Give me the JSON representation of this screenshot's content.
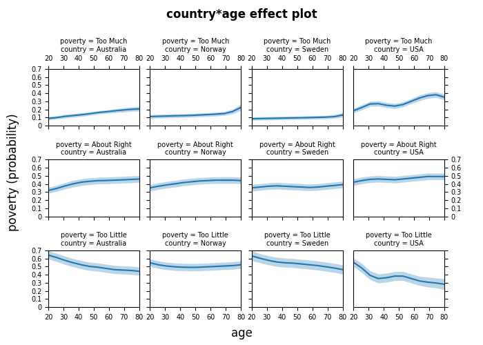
{
  "title": "country*age effect plot",
  "xlabel": "age",
  "ylabel": "poverty (probability)",
  "chart_data": [
    {
      "type": "line",
      "title": "poverty = Too Much",
      "subtitle": "country = Australia",
      "x": [
        20,
        25.454545454545453,
        30.90909090909091,
        36.36363636363636,
        41.81818181818182,
        47.27272727272727,
        52.72727272727273,
        58.18181818181818,
        63.63636363636363,
        69.0909090909091,
        74.54545454545455,
        80
      ],
      "values": [
        0.09,
        0.1,
        0.115,
        0.125,
        0.135,
        0.148,
        0.162,
        0.172,
        0.183,
        0.193,
        0.202,
        0.207
      ],
      "lower": [
        0.072,
        0.082,
        0.095,
        0.105,
        0.115,
        0.128,
        0.142,
        0.152,
        0.16,
        0.168,
        0.176,
        0.18
      ],
      "upper": [
        0.112,
        0.122,
        0.138,
        0.148,
        0.158,
        0.17,
        0.184,
        0.194,
        0.208,
        0.22,
        0.23,
        0.237
      ],
      "xlim": [
        20,
        80
      ],
      "xticks": [
        20,
        30,
        40,
        50,
        60,
        70,
        80
      ],
      "ylim": [
        0,
        0.7
      ],
      "yticks": [
        0,
        0.1,
        0.2,
        0.3,
        0.4,
        0.5,
        0.6,
        0.7
      ]
    },
    {
      "type": "line",
      "title": "poverty = Too Much",
      "subtitle": "country = Norway",
      "x": [
        20,
        25.454545454545453,
        30.90909090909091,
        36.36363636363636,
        41.81818181818182,
        47.27272727272727,
        52.72727272727273,
        58.18181818181818,
        63.63636363636363,
        69.0909090909091,
        74.54545454545455,
        80
      ],
      "values": [
        0.112,
        0.116,
        0.119,
        0.122,
        0.124,
        0.127,
        0.132,
        0.137,
        0.143,
        0.15,
        0.175,
        0.225
      ],
      "lower": [
        0.09,
        0.094,
        0.097,
        0.1,
        0.102,
        0.105,
        0.11,
        0.115,
        0.12,
        0.127,
        0.148,
        0.188
      ],
      "upper": [
        0.136,
        0.14,
        0.143,
        0.146,
        0.148,
        0.151,
        0.156,
        0.161,
        0.168,
        0.175,
        0.204,
        0.264
      ],
      "xlim": [
        20,
        80
      ],
      "xticks": [
        20,
        30,
        40,
        50,
        60,
        70,
        80
      ],
      "ylim": [
        0,
        0.7
      ],
      "yticks": [
        0,
        0.1,
        0.2,
        0.3,
        0.4,
        0.5,
        0.6,
        0.7
      ],
      "tick_labels": "x"
    },
    {
      "type": "line",
      "title": "poverty = Too Much",
      "subtitle": "country = Sweden",
      "x": [
        20,
        25.454545454545453,
        30.90909090909091,
        36.36363636363636,
        41.81818181818182,
        47.27272727272727,
        52.72727272727273,
        58.18181818181818,
        63.63636363636363,
        69.0909090909091,
        74.54545454545455,
        80
      ],
      "values": [
        0.086,
        0.088,
        0.09,
        0.092,
        0.094,
        0.096,
        0.098,
        0.1,
        0.103,
        0.106,
        0.112,
        0.132
      ],
      "lower": [
        0.066,
        0.068,
        0.07,
        0.072,
        0.074,
        0.076,
        0.078,
        0.08,
        0.083,
        0.086,
        0.092,
        0.105
      ],
      "upper": [
        0.108,
        0.11,
        0.112,
        0.114,
        0.116,
        0.118,
        0.12,
        0.122,
        0.125,
        0.128,
        0.135,
        0.162
      ],
      "xlim": [
        20,
        80
      ],
      "xticks": [
        20,
        30,
        40,
        50,
        60,
        70,
        80
      ],
      "ylim": [
        0,
        0.7
      ],
      "yticks": [
        0,
        0.1,
        0.2,
        0.3,
        0.4,
        0.5,
        0.6,
        0.7
      ],
      "tick_labels": "x"
    },
    {
      "type": "line",
      "title": "poverty = Too Much",
      "subtitle": "country = USA",
      "x": [
        20,
        25.454545454545453,
        30.90909090909091,
        36.36363636363636,
        41.81818181818182,
        47.27272727272727,
        52.72727272727273,
        58.18181818181818,
        63.63636363636363,
        69.0909090909091,
        74.54545454545455,
        80
      ],
      "values": [
        0.185,
        0.225,
        0.268,
        0.272,
        0.252,
        0.242,
        0.262,
        0.302,
        0.342,
        0.372,
        0.382,
        0.352
      ],
      "lower": [
        0.158,
        0.195,
        0.238,
        0.242,
        0.222,
        0.212,
        0.232,
        0.272,
        0.308,
        0.338,
        0.348,
        0.318
      ],
      "upper": [
        0.215,
        0.258,
        0.3,
        0.305,
        0.285,
        0.275,
        0.295,
        0.335,
        0.378,
        0.408,
        0.418,
        0.388
      ],
      "xlim": [
        20,
        80
      ],
      "xticks": [
        20,
        30,
        40,
        50,
        60,
        70,
        80
      ],
      "ylim": [
        0,
        0.7
      ],
      "yticks": [
        0,
        0.1,
        0.2,
        0.3,
        0.4,
        0.5,
        0.6,
        0.7
      ],
      "tick_labels": "x"
    },
    {
      "type": "line",
      "title": "poverty = About Right",
      "subtitle": "country = Australia",
      "x": [
        20,
        25.454545454545453,
        30.90909090909091,
        36.36363636363636,
        41.81818181818182,
        47.27272727272727,
        52.72727272727273,
        58.18181818181818,
        63.63636363636363,
        69.0909090909091,
        74.54545454545455,
        80
      ],
      "values": [
        0.32,
        0.345,
        0.375,
        0.402,
        0.422,
        0.433,
        0.441,
        0.443,
        0.447,
        0.451,
        0.456,
        0.461
      ],
      "lower": [
        0.285,
        0.308,
        0.338,
        0.362,
        0.382,
        0.392,
        0.4,
        0.402,
        0.406,
        0.41,
        0.415,
        0.42
      ],
      "upper": [
        0.358,
        0.385,
        0.415,
        0.444,
        0.464,
        0.475,
        0.483,
        0.485,
        0.49,
        0.494,
        0.499,
        0.504
      ],
      "xlim": [
        20,
        80
      ],
      "xticks": [
        20,
        30,
        40,
        50,
        60,
        70,
        80
      ],
      "ylim": [
        0,
        0.7
      ],
      "yticks": [
        0,
        0.1,
        0.2,
        0.3,
        0.4,
        0.5,
        0.6,
        0.7
      ],
      "tick_labels": "y"
    },
    {
      "type": "line",
      "title": "poverty = About Right",
      "subtitle": "country = Norway",
      "x": [
        20,
        25.454545454545453,
        30.90909090909091,
        36.36363636363636,
        41.81818181818182,
        47.27272727272727,
        52.72727272727273,
        58.18181818181818,
        63.63636363636363,
        69.0909090909091,
        74.54545454545455,
        80
      ],
      "values": [
        0.352,
        0.372,
        0.388,
        0.402,
        0.417,
        0.427,
        0.437,
        0.442,
        0.447,
        0.447,
        0.447,
        0.442
      ],
      "lower": [
        0.312,
        0.332,
        0.348,
        0.362,
        0.377,
        0.387,
        0.397,
        0.402,
        0.407,
        0.407,
        0.407,
        0.402
      ],
      "upper": [
        0.394,
        0.414,
        0.43,
        0.444,
        0.459,
        0.469,
        0.479,
        0.484,
        0.489,
        0.489,
        0.489,
        0.484
      ],
      "xlim": [
        20,
        80
      ],
      "xticks": [
        20,
        30,
        40,
        50,
        60,
        70,
        80
      ],
      "ylim": [
        0,
        0.7
      ],
      "yticks": [
        0,
        0.1,
        0.2,
        0.3,
        0.4,
        0.5,
        0.6,
        0.7
      ],
      "tick_labels": false
    },
    {
      "type": "line",
      "title": "poverty = About Right",
      "subtitle": "country = Sweden",
      "x": [
        20,
        25.454545454545453,
        30.90909090909091,
        36.36363636363636,
        41.81818181818182,
        47.27272727272727,
        52.72727272727273,
        58.18181818181818,
        63.63636363636363,
        69.0909090909091,
        74.54545454545455,
        80
      ],
      "values": [
        0.352,
        0.362,
        0.372,
        0.377,
        0.372,
        0.367,
        0.362,
        0.357,
        0.362,
        0.372,
        0.382,
        0.392
      ],
      "lower": [
        0.312,
        0.322,
        0.332,
        0.337,
        0.332,
        0.327,
        0.322,
        0.317,
        0.322,
        0.332,
        0.342,
        0.352
      ],
      "upper": [
        0.394,
        0.404,
        0.414,
        0.419,
        0.414,
        0.409,
        0.404,
        0.399,
        0.404,
        0.414,
        0.424,
        0.434
      ],
      "xlim": [
        20,
        80
      ],
      "xticks": [
        20,
        30,
        40,
        50,
        60,
        70,
        80
      ],
      "ylim": [
        0,
        0.7
      ],
      "yticks": [
        0,
        0.1,
        0.2,
        0.3,
        0.4,
        0.5,
        0.6,
        0.7
      ],
      "tick_labels": false
    },
    {
      "type": "line",
      "title": "poverty = About Right",
      "subtitle": "country = USA",
      "x": [
        20,
        25.454545454545453,
        30.90909090909091,
        36.36363636363636,
        41.81818181818182,
        47.27272727272727,
        52.72727272727273,
        58.18181818181818,
        63.63636363636363,
        69.0909090909091,
        74.54545454545455,
        80
      ],
      "values": [
        0.422,
        0.442,
        0.457,
        0.462,
        0.457,
        0.452,
        0.462,
        0.472,
        0.482,
        0.492,
        0.492,
        0.492
      ],
      "lower": [
        0.382,
        0.402,
        0.417,
        0.422,
        0.417,
        0.412,
        0.422,
        0.432,
        0.442,
        0.452,
        0.452,
        0.452
      ],
      "upper": [
        0.464,
        0.484,
        0.499,
        0.504,
        0.499,
        0.494,
        0.504,
        0.514,
        0.524,
        0.534,
        0.534,
        0.534
      ],
      "xlim": [
        20,
        80
      ],
      "xticks": [
        20,
        30,
        40,
        50,
        60,
        70,
        80
      ],
      "ylim": [
        0,
        0.7
      ],
      "yticks": [
        0,
        0.1,
        0.2,
        0.3,
        0.4,
        0.5,
        0.6,
        0.7
      ],
      "tick_labels": "y"
    },
    {
      "type": "line",
      "title": "poverty = Too Little",
      "subtitle": "country = Australia",
      "x": [
        20,
        25.454545454545453,
        30.90909090909091,
        36.36363636363636,
        41.81818181818182,
        47.27272727272727,
        52.72727272727273,
        58.18181818181818,
        63.63636363636363,
        69.0909090909091,
        74.54545454545455,
        80
      ],
      "values": [
        0.642,
        0.612,
        0.577,
        0.547,
        0.522,
        0.502,
        0.492,
        0.477,
        0.462,
        0.457,
        0.452,
        0.442
      ],
      "lower": [
        0.592,
        0.562,
        0.527,
        0.497,
        0.472,
        0.452,
        0.442,
        0.427,
        0.412,
        0.407,
        0.402,
        0.392
      ],
      "upper": [
        0.694,
        0.664,
        0.629,
        0.599,
        0.574,
        0.554,
        0.544,
        0.529,
        0.514,
        0.509,
        0.504,
        0.494
      ],
      "xlim": [
        20,
        80
      ],
      "xticks": [
        20,
        30,
        40,
        50,
        60,
        70,
        80
      ],
      "ylim": [
        0,
        0.7
      ],
      "yticks": [
        0,
        0.1,
        0.2,
        0.3,
        0.4,
        0.5,
        0.6,
        0.7
      ]
    },
    {
      "type": "line",
      "title": "poverty = Too Little",
      "subtitle": "country = Norway",
      "x": [
        20,
        25.454545454545453,
        30.90909090909091,
        36.36363636363636,
        41.81818181818182,
        47.27272727272727,
        52.72727272727273,
        58.18181818181818,
        63.63636363636363,
        69.0909090909091,
        74.54545454545455,
        80
      ],
      "values": [
        0.547,
        0.522,
        0.507,
        0.497,
        0.492,
        0.49,
        0.492,
        0.497,
        0.502,
        0.507,
        0.512,
        0.522
      ],
      "lower": [
        0.502,
        0.477,
        0.462,
        0.452,
        0.447,
        0.445,
        0.447,
        0.452,
        0.457,
        0.462,
        0.467,
        0.477
      ],
      "upper": [
        0.594,
        0.569,
        0.554,
        0.544,
        0.539,
        0.537,
        0.539,
        0.544,
        0.549,
        0.554,
        0.559,
        0.569
      ],
      "xlim": [
        20,
        80
      ],
      "xticks": [
        20,
        30,
        40,
        50,
        60,
        70,
        80
      ],
      "ylim": [
        0,
        0.7
      ],
      "yticks": [
        0,
        0.1,
        0.2,
        0.3,
        0.4,
        0.5,
        0.6,
        0.7
      ],
      "tick_labels": "x"
    },
    {
      "type": "line",
      "title": "poverty = Too Little",
      "subtitle": "country = Sweden",
      "x": [
        20,
        25.454545454545453,
        30.90909090909091,
        36.36363636363636,
        41.81818181818182,
        47.27272727272727,
        52.72727272727273,
        58.18181818181818,
        63.63636363636363,
        69.0909090909091,
        74.54545454545455,
        80
      ],
      "values": [
        0.632,
        0.602,
        0.577,
        0.557,
        0.547,
        0.542,
        0.532,
        0.522,
        0.512,
        0.497,
        0.482,
        0.462
      ],
      "lower": [
        0.572,
        0.547,
        0.522,
        0.502,
        0.492,
        0.487,
        0.477,
        0.467,
        0.457,
        0.442,
        0.427,
        0.407
      ],
      "upper": [
        0.694,
        0.659,
        0.634,
        0.614,
        0.604,
        0.599,
        0.589,
        0.579,
        0.569,
        0.554,
        0.539,
        0.519
      ],
      "xlim": [
        20,
        80
      ],
      "xticks": [
        20,
        30,
        40,
        50,
        60,
        70,
        80
      ],
      "ylim": [
        0,
        0.7
      ],
      "yticks": [
        0,
        0.1,
        0.2,
        0.3,
        0.4,
        0.5,
        0.6,
        0.7
      ],
      "tick_labels": "x"
    },
    {
      "type": "line",
      "title": "poverty = Too Little",
      "subtitle": "country = USA",
      "x": [
        20,
        25.454545454545453,
        30.90909090909091,
        36.36363636363636,
        41.81818181818182,
        47.27272727272727,
        52.72727272727273,
        58.18181818181818,
        63.63636363636363,
        69.0909090909091,
        74.54545454545455,
        80
      ],
      "values": [
        0.552,
        0.482,
        0.392,
        0.352,
        0.362,
        0.382,
        0.382,
        0.352,
        0.322,
        0.307,
        0.297,
        0.282
      ],
      "lower": [
        0.502,
        0.427,
        0.337,
        0.297,
        0.307,
        0.327,
        0.327,
        0.297,
        0.267,
        0.247,
        0.237,
        0.217
      ],
      "upper": [
        0.604,
        0.539,
        0.449,
        0.409,
        0.419,
        0.439,
        0.439,
        0.409,
        0.379,
        0.369,
        0.359,
        0.349
      ],
      "xlim": [
        20,
        80
      ],
      "xticks": [
        20,
        30,
        40,
        50,
        60,
        70,
        80
      ],
      "ylim": [
        0,
        0.7
      ],
      "yticks": [
        0,
        0.1,
        0.2,
        0.3,
        0.4,
        0.5,
        0.6,
        0.7
      ],
      "tick_labels": "x"
    }
  ]
}
